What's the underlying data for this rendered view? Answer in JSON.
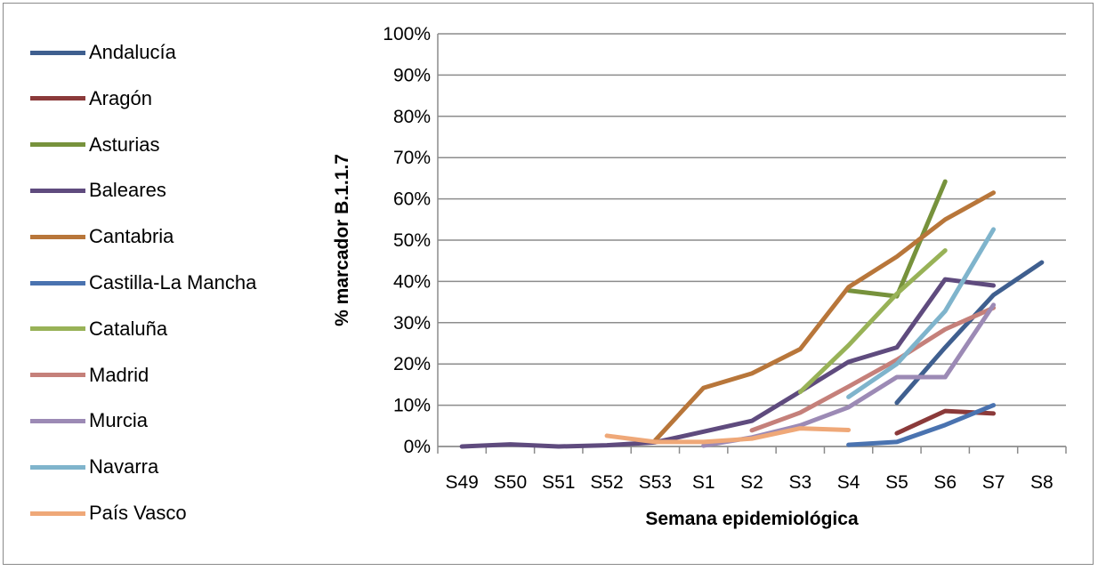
{
  "chart_data": {
    "type": "line",
    "xlabel": "Semana epidemiológica",
    "ylabel": "% marcador B.1.1.7",
    "categories": [
      "S49",
      "S50",
      "S51",
      "S52",
      "S53",
      "S1",
      "S2",
      "S3",
      "S4",
      "S5",
      "S6",
      "S7",
      "S8"
    ],
    "ylim": [
      0,
      100
    ],
    "yticks": [
      "0%",
      "10%",
      "20%",
      "30%",
      "40%",
      "50%",
      "60%",
      "70%",
      "80%",
      "90%",
      "100%"
    ],
    "grid": "horizontal",
    "legend": "left",
    "series": [
      {
        "name": "Andalucía",
        "color": "#3F5F8F",
        "values": [
          null,
          null,
          null,
          null,
          null,
          null,
          null,
          null,
          null,
          10.6,
          24,
          36.7,
          44.6
        ]
      },
      {
        "name": "Aragón",
        "color": "#8B3A3A",
        "values": [
          null,
          null,
          null,
          null,
          null,
          null,
          null,
          null,
          null,
          3.2,
          8.6,
          8.0,
          null
        ]
      },
      {
        "name": "Asturias",
        "color": "#77923C",
        "values": [
          null,
          null,
          null,
          null,
          null,
          null,
          null,
          null,
          37.8,
          36.4,
          64.2,
          null,
          null
        ]
      },
      {
        "name": "Baleares",
        "color": "#5F4B7E",
        "values": [
          0,
          0.5,
          0,
          0.3,
          1.0,
          3.6,
          6.2,
          13.3,
          20.5,
          24,
          40.5,
          39,
          null
        ]
      },
      {
        "name": "Cantabria",
        "color": "#B8763A",
        "values": [
          null,
          null,
          null,
          null,
          1.5,
          14.2,
          17.7,
          23.6,
          38.6,
          46,
          55,
          61.5,
          null
        ]
      },
      {
        "name": "Castilla-La Mancha",
        "color": "#4A73B0",
        "values": [
          null,
          null,
          null,
          null,
          null,
          null,
          null,
          null,
          0.4,
          1.1,
          5.2,
          10,
          null
        ]
      },
      {
        "name": "Cataluña",
        "color": "#98B257",
        "values": [
          null,
          null,
          null,
          null,
          null,
          null,
          null,
          13.2,
          24.5,
          37,
          47.5,
          null,
          null
        ]
      },
      {
        "name": "Madrid",
        "color": "#C5807A",
        "values": [
          null,
          null,
          null,
          null,
          null,
          null,
          3.9,
          8.2,
          14.5,
          21,
          28.4,
          33.6,
          null
        ]
      },
      {
        "name": "Murcia",
        "color": "#9C8AB5",
        "values": [
          null,
          null,
          null,
          null,
          null,
          0.2,
          2.2,
          5.1,
          9.5,
          16.8,
          16.8,
          34.3,
          null
        ]
      },
      {
        "name": "Navarra",
        "color": "#7FB4CC",
        "values": [
          null,
          null,
          null,
          null,
          null,
          null,
          null,
          null,
          12,
          20,
          32.8,
          52.6,
          null
        ]
      },
      {
        "name": "País Vasco",
        "color": "#EFA878",
        "values": [
          null,
          null,
          null,
          2.6,
          1.1,
          1.1,
          1.9,
          4.4,
          4.0,
          null,
          null,
          null,
          null
        ]
      }
    ]
  }
}
